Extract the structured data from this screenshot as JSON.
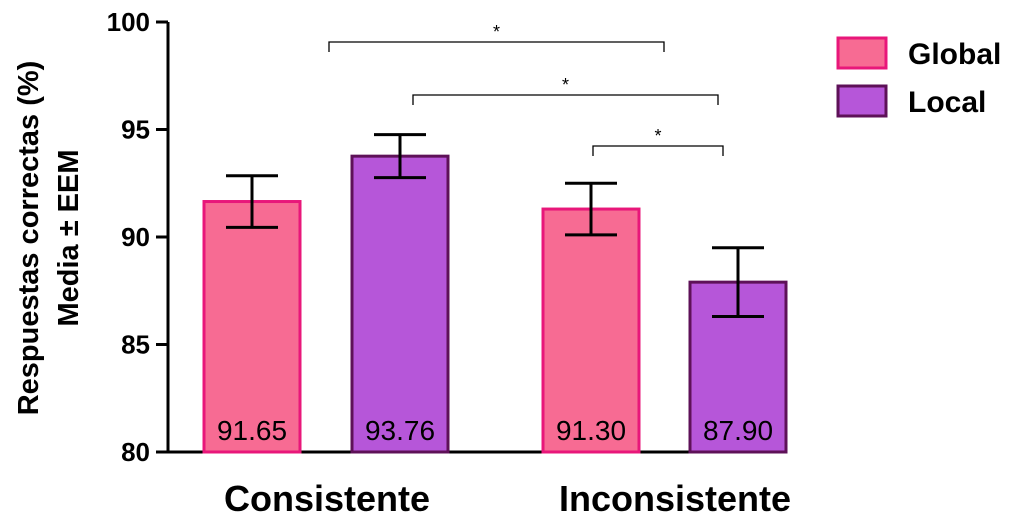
{
  "chart_data": {
    "type": "bar",
    "ylabel_line1": "Respuestas correctas (%)",
    "ylabel_line2": "Media ± EEM",
    "ylim": [
      80,
      100
    ],
    "yticks": [
      "80",
      "85",
      "90",
      "95",
      "100"
    ],
    "categories": [
      "Consistente",
      "Inconsistente"
    ],
    "series": [
      {
        "name": "Global",
        "color": "#f76b93",
        "edge": "#e8177a",
        "values": [
          91.65,
          91.3
        ],
        "errors": [
          1.2,
          1.2
        ],
        "labels": [
          "91.65",
          "91.30"
        ]
      },
      {
        "name": "Local",
        "color": "#b656d9",
        "edge": "#5e1158",
        "values": [
          93.76,
          87.9
        ],
        "errors": [
          1.0,
          1.6
        ],
        "labels": [
          "93.76",
          "87.90"
        ]
      }
    ],
    "significance": [
      {
        "from": "Consistente-Global",
        "to": "Inconsistente-Global",
        "label": "*"
      },
      {
        "from": "Consistente-Local",
        "to": "Inconsistente-Local",
        "label": "*"
      },
      {
        "from": "Inconsistente-Global",
        "to": "Inconsistente-Local",
        "label": "*"
      }
    ],
    "legend_position": "top-right",
    "grid": false
  }
}
